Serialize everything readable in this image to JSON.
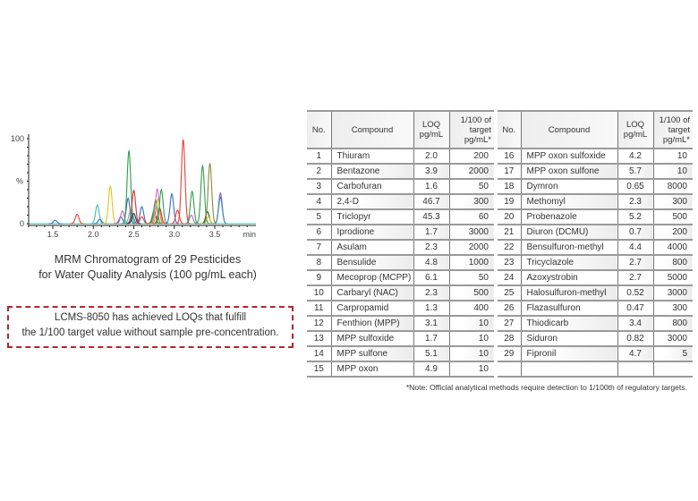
{
  "chart_data": {
    "type": "line",
    "title": "MRM Chromatogram of 29 Pesticides",
    "subtitle": "for Water Quality Analysis (100 pg/mL each)",
    "xlabel": "min",
    "ylabel": "%",
    "xlim": [
      1.2,
      3.95
    ],
    "ylim": [
      0,
      100
    ],
    "x_ticks": [
      "1.5",
      "2.0",
      "2.5",
      "3.0",
      "3.5"
    ],
    "y_ticks": [
      "0",
      "100"
    ],
    "peaks": [
      {
        "t": 1.53,
        "h": 4,
        "color": "#3a6fc0"
      },
      {
        "t": 1.8,
        "h": 11,
        "color": "#e0443a"
      },
      {
        "t": 2.05,
        "h": 22,
        "color": "#3fbfa8"
      },
      {
        "t": 2.08,
        "h": 5,
        "color": "#3a6fc0"
      },
      {
        "t": 2.21,
        "h": 44,
        "color": "#e8c020"
      },
      {
        "t": 2.34,
        "h": 8,
        "color": "#3a6fc0"
      },
      {
        "t": 2.36,
        "h": 15,
        "color": "#d060c0"
      },
      {
        "t": 2.43,
        "h": 30,
        "color": "#3a6fc0"
      },
      {
        "t": 2.44,
        "h": 86,
        "color": "#2ea04a"
      },
      {
        "t": 2.46,
        "h": 15,
        "color": "#3fbfa8"
      },
      {
        "t": 2.48,
        "h": 10,
        "color": "#2ea04a"
      },
      {
        "t": 2.5,
        "h": 39,
        "color": "#d83030"
      },
      {
        "t": 2.5,
        "h": 12,
        "color": "#1a2a70"
      },
      {
        "t": 2.6,
        "h": 20,
        "color": "#3a6fc0"
      },
      {
        "t": 2.6,
        "h": 8,
        "color": "#e0443a"
      },
      {
        "t": 2.75,
        "h": 15,
        "color": "#6a6a20"
      },
      {
        "t": 2.77,
        "h": 28,
        "color": "#2ea04a"
      },
      {
        "t": 2.79,
        "h": 41,
        "color": "#d070d0"
      },
      {
        "t": 2.8,
        "h": 29,
        "color": "#f0a030"
      },
      {
        "t": 2.82,
        "h": 18,
        "color": "#d83030"
      },
      {
        "t": 2.84,
        "h": 40,
        "color": "#2ea04a"
      },
      {
        "t": 2.97,
        "h": 35,
        "color": "#3a6fc0"
      },
      {
        "t": 3.04,
        "h": 16,
        "color": "#e0443a"
      },
      {
        "t": 3.11,
        "h": 99,
        "color": "#e0443a"
      },
      {
        "t": 3.21,
        "h": 10,
        "color": "#d060c0"
      },
      {
        "t": 3.22,
        "h": 38,
        "color": "#2ea04a"
      },
      {
        "t": 3.35,
        "h": 68,
        "color": "#2ea04a"
      },
      {
        "t": 3.41,
        "h": 14,
        "color": "#1a5a30"
      },
      {
        "t": 3.42,
        "h": 8,
        "color": "#e8c020"
      },
      {
        "t": 3.44,
        "h": 71,
        "color": "#8a8a40"
      },
      {
        "t": 3.57,
        "h": 36,
        "color": "#9050c0"
      },
      {
        "t": 3.57,
        "h": 31,
        "color": "#3a90c0"
      }
    ]
  },
  "callout": {
    "line1": "LCMS-8050 has achieved LOQs that fulfill",
    "line2": "the 1/100 target value without sample pre-concentration.",
    "border_color": "#b3262e"
  },
  "table": {
    "headers": {
      "no": "No.",
      "compound": "Compound",
      "loq1": "LOQ",
      "loq2": "pg/mL",
      "t1": "1/100 of",
      "t2": "target",
      "t3": "pg/mL*"
    },
    "left": [
      [
        "1",
        "Thiuram",
        "2.0",
        "200"
      ],
      [
        "2",
        "Bentazone",
        "3.9",
        "2000"
      ],
      [
        "3",
        "Carbofuran",
        "1.6",
        "50"
      ],
      [
        "4",
        "2,4-D",
        "46.7",
        "300"
      ],
      [
        "5",
        "Triclopyr",
        "45.3",
        "60"
      ],
      [
        "6",
        "Iprodione",
        "1.7",
        "3000"
      ],
      [
        "7",
        "Asulam",
        "2.3",
        "2000"
      ],
      [
        "8",
        "Bensulide",
        "4.8",
        "1000"
      ],
      [
        "9",
        "Mecoprop (MCPP)",
        "6.1",
        "50"
      ],
      [
        "10",
        "Carbaryl (NAC)",
        "2.3",
        "500"
      ],
      [
        "11",
        "Carpropamid",
        "1.3",
        "400"
      ],
      [
        "12",
        "Fenthion (MPP)",
        "3.1",
        "10"
      ],
      [
        "13",
        "MPP sulfoxide",
        "1.7",
        "10"
      ],
      [
        "14",
        "MPP sulfone",
        "5.1",
        "10"
      ],
      [
        "15",
        "MPP oxon",
        "4.9",
        "10"
      ]
    ],
    "right": [
      [
        "16",
        "MPP oxon sulfoxide",
        "4.2",
        "10"
      ],
      [
        "17",
        "MPP oxon sulfone",
        "5.7",
        "10"
      ],
      [
        "18",
        "Dymron",
        "0.65",
        "8000"
      ],
      [
        "19",
        "Methomyl",
        "2.3",
        "300"
      ],
      [
        "20",
        "Probenazole",
        "5.2",
        "500"
      ],
      [
        "21",
        "Diuron (DCMU)",
        "0.7",
        "200"
      ],
      [
        "22",
        "Bensulfuron-methyl",
        "4.4",
        "4000"
      ],
      [
        "23",
        "Tricyclazole",
        "2.7",
        "800"
      ],
      [
        "24",
        "Azoxystrobin",
        "2.7",
        "5000"
      ],
      [
        "25",
        "Halosulfuron-methyl",
        "0.52",
        "3000"
      ],
      [
        "26",
        "Flazasulfuron",
        "0.47",
        "300"
      ],
      [
        "27",
        "Thiodicarb",
        "3.4",
        "800"
      ],
      [
        "28",
        "Siduron",
        "0.82",
        "3000"
      ],
      [
        "29",
        "Fipronil",
        "4.7",
        "5"
      ],
      [
        "",
        "",
        "",
        ""
      ]
    ],
    "note": "*Note: Official analytical methods require detection to 1/100th of regulatory targets."
  }
}
